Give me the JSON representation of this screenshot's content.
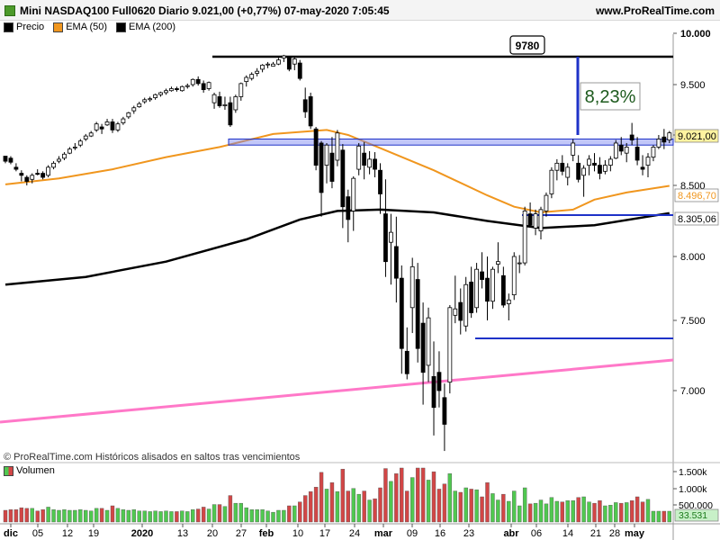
{
  "header": {
    "title": "Mini NASDAQ100 Full0620 Diario 9.021,00 (+0,77%) 07-may-2020 7:05:45",
    "site": "www.ProRealTime.com"
  },
  "legend": [
    {
      "label": "Precio",
      "color": "#000000"
    },
    {
      "label": "EMA (50)",
      "color": "#f0961e"
    },
    {
      "label": "EMA (200)",
      "color": "#000000"
    }
  ],
  "credit": "© ProRealTime.com Históricos alisados en saltos tras vencimientos",
  "volume_label": "Volumen",
  "colors": {
    "up": "#ffffff",
    "down": "#000000",
    "ema50": "#f0961e",
    "ema200": "#000000",
    "support": "#1e32c8",
    "trend": "#ff78c8",
    "vol_up": "#50c850",
    "vol_down": "#d24646",
    "box": "#7882f0"
  },
  "chart_data": [
    {
      "type": "candlestick",
      "title": "Mini NASDAQ100 Full0620 Diario",
      "x_labels": [
        "dic",
        "05",
        "12",
        "19",
        "2020",
        "13",
        "20",
        "27",
        "feb",
        "10",
        "17",
        "24",
        "mar",
        "09",
        "16",
        "23",
        "abr",
        "06",
        "14",
        "21",
        "28",
        "may"
      ],
      "y_ticks": [
        "10.000",
        "9.500",
        "9.000",
        "8.500",
        "8.000",
        "7.500",
        "7.000"
      ],
      "ylim": [
        6570,
        10200
      ],
      "price_labels": [
        "9.021,00",
        "8.496,70",
        "8.305,06"
      ],
      "annotations": [
        {
          "text": "9780",
          "kind": "box",
          "value": 9780
        },
        {
          "text": "8,23%",
          "kind": "label"
        }
      ],
      "levels": {
        "resistance": 9750,
        "support_1": 8330,
        "support_2": 7380,
        "zone": [
          8900,
          8960
        ]
      },
      "series": [
        {
          "name": "Precio",
          "ohlc": [
            [
              8790,
              8790,
              8720,
              8740
            ],
            [
              8770,
              8790,
              8710,
              8730
            ],
            [
              8680,
              8720,
              8640,
              8660
            ],
            [
              8620,
              8650,
              8540,
              8600
            ],
            [
              8580,
              8600,
              8500,
              8540
            ],
            [
              8560,
              8620,
              8520,
              8600
            ],
            [
              8620,
              8660,
              8600,
              8610
            ],
            [
              8620,
              8640,
              8560,
              8580
            ],
            [
              8600,
              8700,
              8580,
              8680
            ],
            [
              8680,
              8740,
              8660,
              8720
            ],
            [
              8740,
              8790,
              8720,
              8760
            ],
            [
              8770,
              8830,
              8750,
              8810
            ],
            [
              8820,
              8880,
              8810,
              8860
            ],
            [
              8880,
              8920,
              8850,
              8880
            ],
            [
              8900,
              8960,
              8880,
              8940
            ],
            [
              8960,
              9010,
              8940,
              8990
            ],
            [
              8990,
              9040,
              8980,
              9020
            ],
            [
              9050,
              9130,
              9030,
              9110
            ],
            [
              9080,
              9110,
              9010,
              9060
            ],
            [
              9100,
              9160,
              9090,
              9130
            ],
            [
              9130,
              9160,
              9020,
              9050
            ],
            [
              9050,
              9130,
              9030,
              9110
            ],
            [
              9120,
              9180,
              9100,
              9160
            ],
            [
              9180,
              9230,
              9160,
              9220
            ],
            [
              9240,
              9290,
              9210,
              9270
            ],
            [
              9280,
              9330,
              9270,
              9310
            ],
            [
              9330,
              9370,
              9310,
              9350
            ],
            [
              9350,
              9380,
              9330,
              9360
            ],
            [
              9370,
              9410,
              9350,
              9400
            ],
            [
              9400,
              9430,
              9380,
              9420
            ],
            [
              9420,
              9460,
              9400,
              9440
            ],
            [
              9440,
              9480,
              9430,
              9460
            ],
            [
              9460,
              9480,
              9430,
              9450
            ],
            [
              9440,
              9490,
              9430,
              9480
            ],
            [
              9480,
              9510,
              9460,
              9490
            ],
            [
              9500,
              9560,
              9480,
              9550
            ],
            [
              9550,
              9580,
              9490,
              9510
            ],
            [
              9510,
              9540,
              9420,
              9450
            ],
            [
              9460,
              9530,
              9440,
              9520
            ],
            [
              9320,
              9420,
              9260,
              9400
            ],
            [
              9380,
              9430,
              9270,
              9290
            ],
            [
              9290,
              9380,
              9250,
              9300
            ],
            [
              9320,
              9380,
              9080,
              9100
            ],
            [
              9250,
              9400,
              9220,
              9380
            ],
            [
              9380,
              9520,
              9340,
              9510
            ],
            [
              9530,
              9590,
              9480,
              9570
            ],
            [
              9560,
              9620,
              9540,
              9600
            ],
            [
              9610,
              9660,
              9580,
              9630
            ],
            [
              9650,
              9700,
              9620,
              9690
            ],
            [
              9700,
              9720,
              9660,
              9700
            ],
            [
              9680,
              9720,
              9680,
              9700
            ],
            [
              9700,
              9760,
              9690,
              9740
            ],
            [
              9760,
              9790,
              9720,
              9780
            ],
            [
              9760,
              9770,
              9630,
              9650
            ],
            [
              9700,
              9780,
              9640,
              9750
            ],
            [
              9710,
              9740,
              9540,
              9560
            ],
            [
              9350,
              9470,
              9170,
              9230
            ],
            [
              9380,
              9420,
              9060,
              9090
            ],
            [
              9060,
              9080,
              8650,
              8700
            ],
            [
              8920,
              8940,
              8280,
              8450
            ],
            [
              8700,
              8920,
              8520,
              8900
            ],
            [
              8820,
              8980,
              8480,
              8540
            ],
            [
              8750,
              9050,
              8690,
              9020
            ],
            [
              8850,
              8910,
              8200,
              8350
            ],
            [
              8420,
              8470,
              8100,
              8260
            ],
            [
              8320,
              8590,
              8180,
              8570
            ],
            [
              8660,
              8920,
              8600,
              8890
            ],
            [
              8820,
              8930,
              8560,
              8700
            ],
            [
              8680,
              8840,
              8610,
              8760
            ],
            [
              8760,
              8830,
              8580,
              8660
            ],
            [
              8650,
              8720,
              8300,
              8440
            ],
            [
              8300,
              8560,
              7840,
              7960
            ],
            [
              8100,
              8300,
              7780,
              8170
            ],
            [
              8070,
              8280,
              7640,
              7830
            ],
            [
              7830,
              7930,
              7120,
              7300
            ],
            [
              7280,
              7450,
              7080,
              7120
            ],
            [
              7600,
              7990,
              7410,
              7920
            ],
            [
              7820,
              7950,
              7200,
              7300
            ],
            [
              7480,
              7640,
              6900,
              7130
            ],
            [
              7180,
              7600,
              7060,
              7520
            ],
            [
              7100,
              7350,
              6680,
              6880
            ],
            [
              7130,
              7280,
              6880,
              7000
            ],
            [
              6950,
              7050,
              6570,
              6760
            ],
            [
              7060,
              7620,
              6980,
              7600
            ],
            [
              7540,
              7850,
              7480,
              7590
            ],
            [
              7640,
              7750,
              7400,
              7500
            ],
            [
              7460,
              7840,
              7420,
              7780
            ],
            [
              7800,
              7920,
              7520,
              7560
            ],
            [
              7600,
              7950,
              7560,
              7900
            ],
            [
              7880,
              8030,
              7750,
              7820
            ],
            [
              7830,
              8000,
              7500,
              7650
            ],
            [
              7650,
              7920,
              7590,
              7900
            ],
            [
              7940,
              8100,
              7870,
              7960
            ],
            [
              7850,
              7920,
              7600,
              7620
            ],
            [
              7630,
              7710,
              7500,
              7660
            ],
            [
              7700,
              8030,
              7660,
              8000
            ],
            [
              7950,
              8010,
              7870,
              7950
            ],
            [
              7950,
              8350,
              7930,
              8320
            ],
            [
              8300,
              8380,
              8210,
              8220
            ],
            [
              8200,
              8330,
              8150,
              8300
            ],
            [
              8180,
              8350,
              8120,
              8330
            ],
            [
              8320,
              8450,
              8280,
              8430
            ],
            [
              8440,
              8680,
              8410,
              8650
            ],
            [
              8650,
              8760,
              8550,
              8720
            ],
            [
              8720,
              8800,
              8600,
              8640
            ],
            [
              8580,
              8720,
              8500,
              8680
            ],
            [
              8800,
              8960,
              8740,
              8920
            ],
            [
              8720,
              8800,
              8530,
              8560
            ],
            [
              8600,
              8700,
              8420,
              8670
            ],
            [
              8700,
              8800,
              8600,
              8760
            ],
            [
              8720,
              8820,
              8640,
              8700
            ],
            [
              8700,
              8780,
              8560,
              8620
            ],
            [
              8640,
              8750,
              8610,
              8700
            ],
            [
              8700,
              8790,
              8640,
              8760
            ],
            [
              8770,
              8950,
              8760,
              8920
            ],
            [
              8900,
              8980,
              8800,
              8840
            ],
            [
              8820,
              8920,
              8730,
              8880
            ],
            [
              9000,
              9120,
              8900,
              8950
            ],
            [
              8880,
              8980,
              8700,
              8750
            ],
            [
              8680,
              8800,
              8600,
              8660
            ],
            [
              8700,
              8820,
              8580,
              8780
            ],
            [
              8780,
              8900,
              8740,
              8880
            ],
            [
              8880,
              9000,
              8860,
              8960
            ],
            [
              8980,
              9060,
              8860,
              8930
            ],
            [
              8950,
              9040,
              8920,
              9021
            ]
          ]
        },
        {
          "name": "EMA (50)",
          "points": [
            [
              0,
              8510
            ],
            [
              10,
              8570
            ],
            [
              20,
              8660
            ],
            [
              30,
              8780
            ],
            [
              40,
              8880
            ],
            [
              50,
              9010
            ],
            [
              60,
              9050
            ],
            [
              64,
              9000
            ],
            [
              70,
              8870
            ],
            [
              80,
              8650
            ],
            [
              90,
              8430
            ],
            [
              95,
              8350
            ],
            [
              100,
              8310
            ],
            [
              106,
              8330
            ],
            [
              110,
              8400
            ],
            [
              116,
              8450
            ],
            [
              124,
              8497
            ]
          ]
        },
        {
          "name": "EMA (200)",
          "points": [
            [
              0,
              7780
            ],
            [
              15,
              7840
            ],
            [
              30,
              7960
            ],
            [
              45,
              8120
            ],
            [
              55,
              8260
            ],
            [
              62,
              8320
            ],
            [
              70,
              8330
            ],
            [
              80,
              8310
            ],
            [
              90,
              8250
            ],
            [
              100,
              8200
            ],
            [
              110,
              8220
            ],
            [
              124,
              8305
            ]
          ]
        }
      ],
      "volume": {
        "y_ticks": [
          "1.500k",
          "1.000k",
          "500.000"
        ],
        "last_label": "33.531"
      }
    }
  ]
}
